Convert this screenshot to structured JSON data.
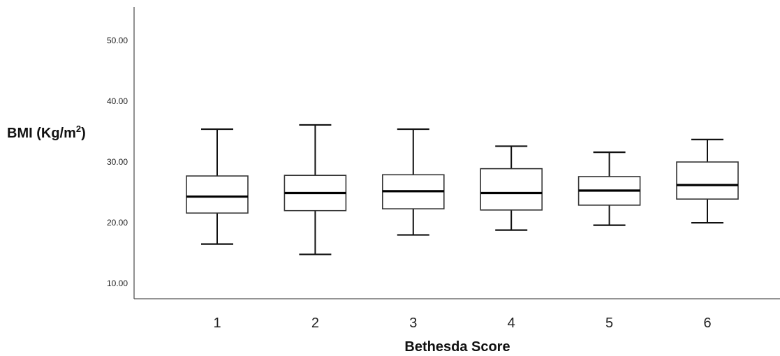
{
  "chart_data": {
    "type": "boxplot",
    "xlabel": "Bethesda Score",
    "ylabel_main": "BMI (Kg/m",
    "ylabel_sup": "2",
    "ylabel_close": ")",
    "ylim": [
      7.5,
      55.5
    ],
    "yticks": [
      "10.00",
      "20.00",
      "30.00",
      "40.00",
      "50.00"
    ],
    "ytick_values": [
      10,
      20,
      30,
      40,
      50
    ],
    "grid": false,
    "categories": [
      "1",
      "2",
      "3",
      "4",
      "5",
      "6"
    ],
    "series": [
      {
        "min": 16.5,
        "q1": 21.6,
        "median": 24.3,
        "q3": 27.7,
        "max": 35.4
      },
      {
        "min": 14.8,
        "q1": 22.0,
        "median": 24.9,
        "q3": 27.8,
        "max": 36.1
      },
      {
        "min": 18.0,
        "q1": 22.3,
        "median": 25.2,
        "q3": 27.9,
        "max": 35.4
      },
      {
        "min": 18.8,
        "q1": 22.1,
        "median": 24.9,
        "q3": 28.9,
        "max": 32.6
      },
      {
        "min": 19.6,
        "q1": 22.9,
        "median": 25.3,
        "q3": 27.6,
        "max": 31.6
      },
      {
        "min": 20.0,
        "q1": 23.9,
        "median": 26.2,
        "q3": 30.0,
        "max": 33.7
      }
    ]
  }
}
